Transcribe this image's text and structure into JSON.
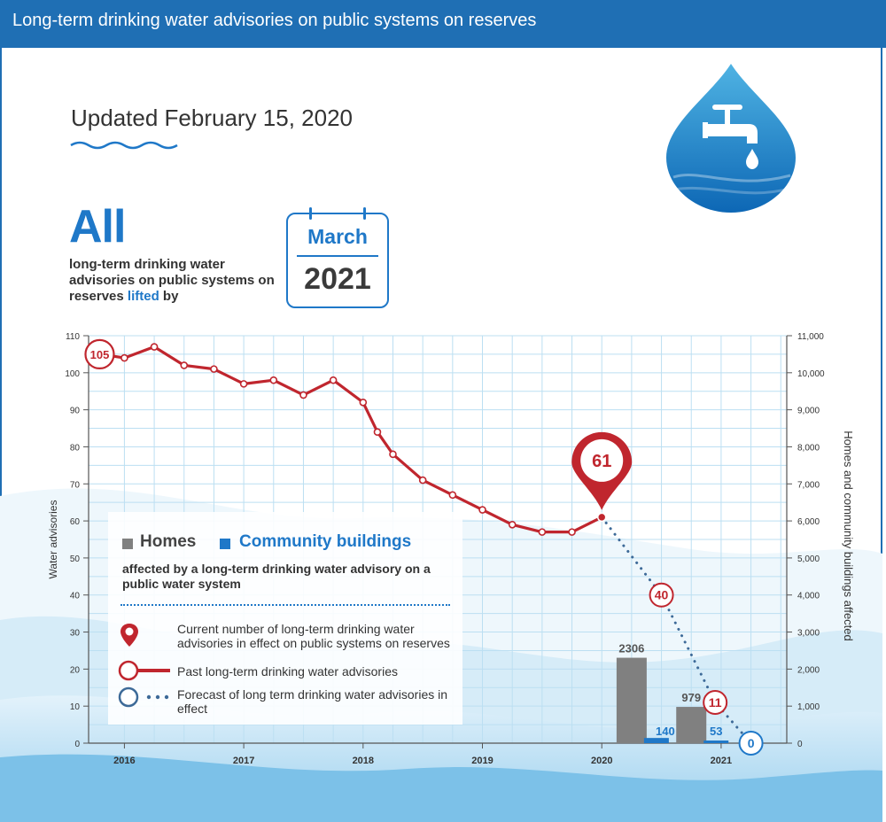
{
  "header": {
    "title": "Long-term drinking water advisories on public systems on reserves"
  },
  "updated": "Updated February 15, 2020",
  "headline": {
    "big": "All",
    "desc_pre": "long-term drinking water advisories on public systems on reserves",
    "desc_lifted": "lifted",
    "desc_post": "by"
  },
  "calendar": {
    "month": "March",
    "year": "2021"
  },
  "icons": {
    "faucet": "water-drop-faucet-icon",
    "calendar": "calendar-icon",
    "pin": "map-pin-icon"
  },
  "colors": {
    "header": "#1f6fb4",
    "accent": "#1f78c8",
    "line": "#c0262e",
    "homes": "#808080",
    "forecast": "#3d6a98"
  },
  "legend": {
    "homes": "Homes",
    "community": "Community buildings",
    "affected": "affected by a long-term drinking water advisory on a public water system",
    "current": "Current number of long-term drinking water advisories in effect on public systems on reserves",
    "past": "Past long-term drinking water advisories",
    "forecast": "Forecast of long term drinking water advisories in effect"
  },
  "chart_data": {
    "type": "line",
    "ylabel": "Water advisories",
    "y2label": "Homes and community buildings affected",
    "ylim": [
      0,
      110
    ],
    "y2lim": [
      0,
      11000
    ],
    "yticks": [
      0,
      10,
      20,
      30,
      40,
      50,
      60,
      70,
      80,
      90,
      100,
      110
    ],
    "y2ticks": [
      "0",
      "1,000",
      "2,000",
      "3,000",
      "4,000",
      "5,000",
      "6,000",
      "7,000",
      "8,000",
      "9,000",
      "10,000",
      "11,000"
    ],
    "xticks": [
      "2016",
      "2017",
      "2018",
      "2019",
      "2020",
      "2021"
    ],
    "xlim": [
      2015.7,
      2021.55
    ],
    "past": [
      {
        "x": 2015.8,
        "y": 105
      },
      {
        "x": 2016.0,
        "y": 104
      },
      {
        "x": 2016.25,
        "y": 107
      },
      {
        "x": 2016.5,
        "y": 102
      },
      {
        "x": 2016.75,
        "y": 101
      },
      {
        "x": 2017.0,
        "y": 97
      },
      {
        "x": 2017.25,
        "y": 98
      },
      {
        "x": 2017.5,
        "y": 94
      },
      {
        "x": 2017.75,
        "y": 98
      },
      {
        "x": 2018.0,
        "y": 92
      },
      {
        "x": 2018.12,
        "y": 84
      },
      {
        "x": 2018.25,
        "y": 78
      },
      {
        "x": 2018.5,
        "y": 71
      },
      {
        "x": 2018.75,
        "y": 67
      },
      {
        "x": 2019.0,
        "y": 63
      },
      {
        "x": 2019.25,
        "y": 59
      },
      {
        "x": 2019.5,
        "y": 57
      },
      {
        "x": 2019.75,
        "y": 57
      },
      {
        "x": 2020.0,
        "y": 61
      }
    ],
    "current": {
      "x": 2020.0,
      "y": 61,
      "label": "61"
    },
    "start_label": {
      "x": 2015.8,
      "y": 105,
      "label": "105"
    },
    "forecast": [
      {
        "x": 2020.0,
        "y": 61
      },
      {
        "x": 2020.5,
        "y": 40,
        "label": "40"
      },
      {
        "x": 2020.95,
        "y": 11,
        "label": "11"
      },
      {
        "x": 2021.25,
        "y": 0,
        "label": "0"
      }
    ],
    "bars": [
      {
        "year": "2020",
        "x": 2020.25,
        "homes": 2306,
        "community": 140,
        "homes_label": "2306",
        "community_label": "140"
      },
      {
        "year": "2021",
        "x": 2020.75,
        "homes": 979,
        "community": 53,
        "homes_label": "979",
        "community_label": "53"
      }
    ]
  }
}
